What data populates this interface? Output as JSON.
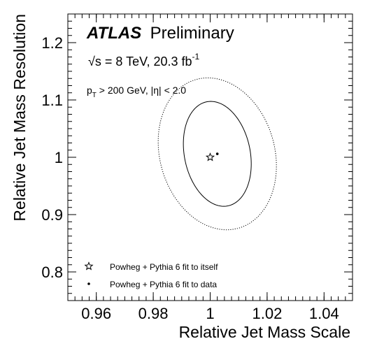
{
  "chart_data": {
    "type": "scatter",
    "xlabel": "Relative Jet Mass Scale",
    "ylabel": "Relative Jet Mass Resolution",
    "xlim": [
      0.95,
      1.05
    ],
    "ylim": [
      0.75,
      1.25
    ],
    "xticks": [
      0.96,
      0.98,
      1,
      1.02,
      1.04
    ],
    "xtick_labels": [
      "0.96",
      "0.98",
      "1",
      "1.02",
      "1.04"
    ],
    "yticks": [
      0.8,
      0.9,
      1,
      1.1,
      1.2
    ],
    "ytick_labels": [
      "0.8",
      "0.9",
      "1",
      "1.1",
      "1.2"
    ],
    "grid": false,
    "annotations": {
      "atlas": "ATLAS",
      "preliminary": "Preliminary",
      "energy_sqrt": "√s",
      "energy_rest": " = 8 TeV, 20.3 fb",
      "energy_sup": "-1",
      "cut_p": "p",
      "cut_sub": "T",
      "cut_rest": " > 200 GeV, |η| < 2.0"
    },
    "points": [
      {
        "label": "Powheg + Pythia 6 fit to itself",
        "marker": "star",
        "x": 1.0,
        "y": 1.0
      },
      {
        "label": "Powheg + Pythia 6 fit to data",
        "marker": "dot",
        "x": 1.0025,
        "y": 1.006
      }
    ],
    "contours": [
      {
        "style": "solid",
        "cx": 1.0025,
        "cy": 1.006,
        "rx": 0.0117,
        "ry": 0.0915,
        "tilt_x_per_y": -0.025
      },
      {
        "style": "dotted",
        "cx": 1.0025,
        "cy": 1.006,
        "rx": 0.0205,
        "ry": 0.1325,
        "tilt_x_per_y": -0.025
      }
    ],
    "legend_position": "bottom-left"
  }
}
